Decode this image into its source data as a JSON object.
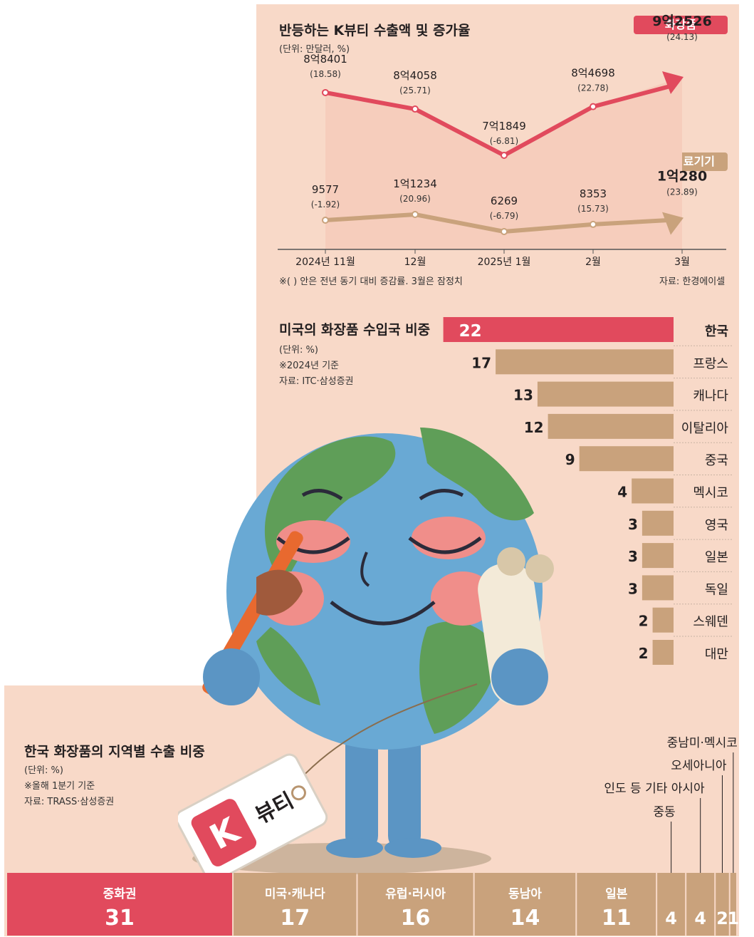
{
  "line_chart": {
    "title": "반등하는 K뷰티 수출액 및 증가율",
    "unit": "(단위: 만달러, %)",
    "note": "※( ) 안은 전년 동기 대비 증감률. 3월은 잠정치",
    "source": "자료: 한경에이셀",
    "tag_cosmetics": "화장품",
    "tag_devices": "미용 의료기기"
  },
  "bar_chart": {
    "title": "미국의 화장품 수입국 비중",
    "unit": "(단위: %)",
    "note": "※2024년 기준",
    "source": "자료: ITC·삼성증권"
  },
  "region_chart": {
    "title": "한국 화장품의 지역별 수출 비중",
    "unit": "(단위: %)",
    "note": "※올해 1분기 기준",
    "source": "자료: TRASS·삼성증권"
  },
  "illustration": {
    "tag_text": "뷰티",
    "tag_letter": "K"
  },
  "colors": {
    "accent_red": "#e14a5d",
    "tan": "#c9a27c",
    "background": "#f8d9c8"
  },
  "chart_data": [
    {
      "type": "line",
      "title": "반등하는 K뷰티 수출액 및 증가율",
      "x": [
        "2024년 11월",
        "12월",
        "2025년 1월",
        "2월",
        "3월"
      ],
      "series": [
        {
          "name": "화장품",
          "values": [
            88401,
            84058,
            71849,
            84698,
            92526
          ],
          "labels": [
            "8억8401",
            "8억4058",
            "7억1849",
            "8억4698",
            "9억2526"
          ],
          "rates": [
            "(18.58)",
            "(25.71)",
            "(-6.81)",
            "(22.78)",
            "(24.13)"
          ]
        },
        {
          "name": "미용 의료기기",
          "values": [
            9577,
            11234,
            6269,
            8353,
            10280
          ],
          "labels": [
            "9577",
            "1억1234",
            "6269",
            "8353",
            "1억280"
          ],
          "rates": [
            "(-1.92)",
            "(20.96)",
            "(-6.79)",
            "(15.73)",
            "(23.89)"
          ]
        }
      ]
    },
    {
      "type": "bar",
      "title": "미국의 화장품 수입국 비중",
      "categories": [
        "한국",
        "프랑스",
        "캐나다",
        "이탈리아",
        "중국",
        "멕시코",
        "영국",
        "일본",
        "독일",
        "스웨덴",
        "대만"
      ],
      "values": [
        22,
        17,
        13,
        12,
        9,
        4,
        3,
        3,
        3,
        2,
        2
      ]
    },
    {
      "type": "bar",
      "title": "한국 화장품의 지역별 수출 비중",
      "categories": [
        "중화권",
        "미국·캐나다",
        "유럽·러시아",
        "동남아",
        "일본",
        "중동",
        "인도 등 기타 아시아",
        "오세아니아",
        "중남미·멕시코"
      ],
      "values": [
        31,
        17,
        16,
        14,
        11,
        4,
        4,
        2,
        1
      ]
    }
  ]
}
